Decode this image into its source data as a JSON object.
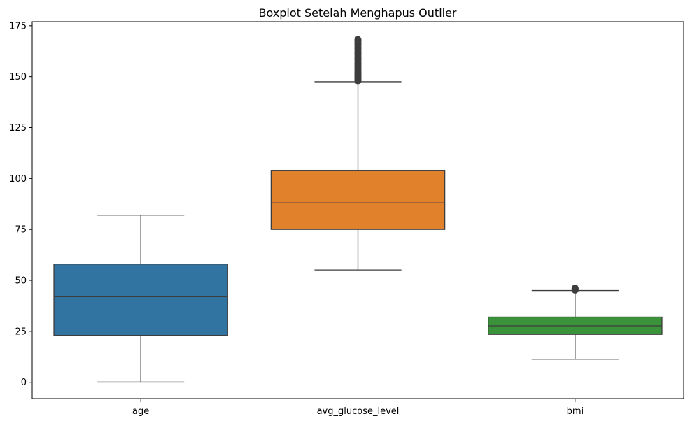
{
  "chart_data": {
    "type": "box",
    "title": "Boxplot Setelah Menghapus Outlier",
    "xlabel": "",
    "ylabel": "",
    "ylim": [
      -8,
      177
    ],
    "yticks": [
      0,
      25,
      50,
      75,
      100,
      125,
      150,
      175
    ],
    "grid": false,
    "categories": [
      "age",
      "avg_glucose_level",
      "bmi"
    ],
    "series": [
      {
        "category": "age",
        "color": "#3274a1",
        "whisker_low": 0.08,
        "q1": 23,
        "median": 42,
        "q3": 58,
        "whisker_high": 82,
        "outliers": []
      },
      {
        "category": "avg_glucose_level",
        "color": "#e1812c",
        "whisker_low": 55.1,
        "q1": 75,
        "median": 88,
        "q3": 104,
        "whisker_high": 147.5,
        "outliers": [
          148,
          148.5,
          149,
          149.6,
          150.2,
          150.8,
          151.4,
          152,
          152.8,
          153.5,
          154.3,
          155,
          155.8,
          156.6,
          157.4,
          158.2,
          159,
          159.8,
          160.6,
          161.4,
          162.2,
          163,
          163.8,
          164.6,
          165.4,
          166.2,
          167,
          167.8,
          168.2
        ]
      },
      {
        "category": "bmi",
        "color": "#3a923a",
        "whisker_low": 11.3,
        "q1": 23.5,
        "median": 27.7,
        "q3": 32,
        "whisker_high": 45,
        "outliers": [
          45.2,
          45.5,
          45.8,
          46,
          46.2
        ]
      }
    ]
  }
}
